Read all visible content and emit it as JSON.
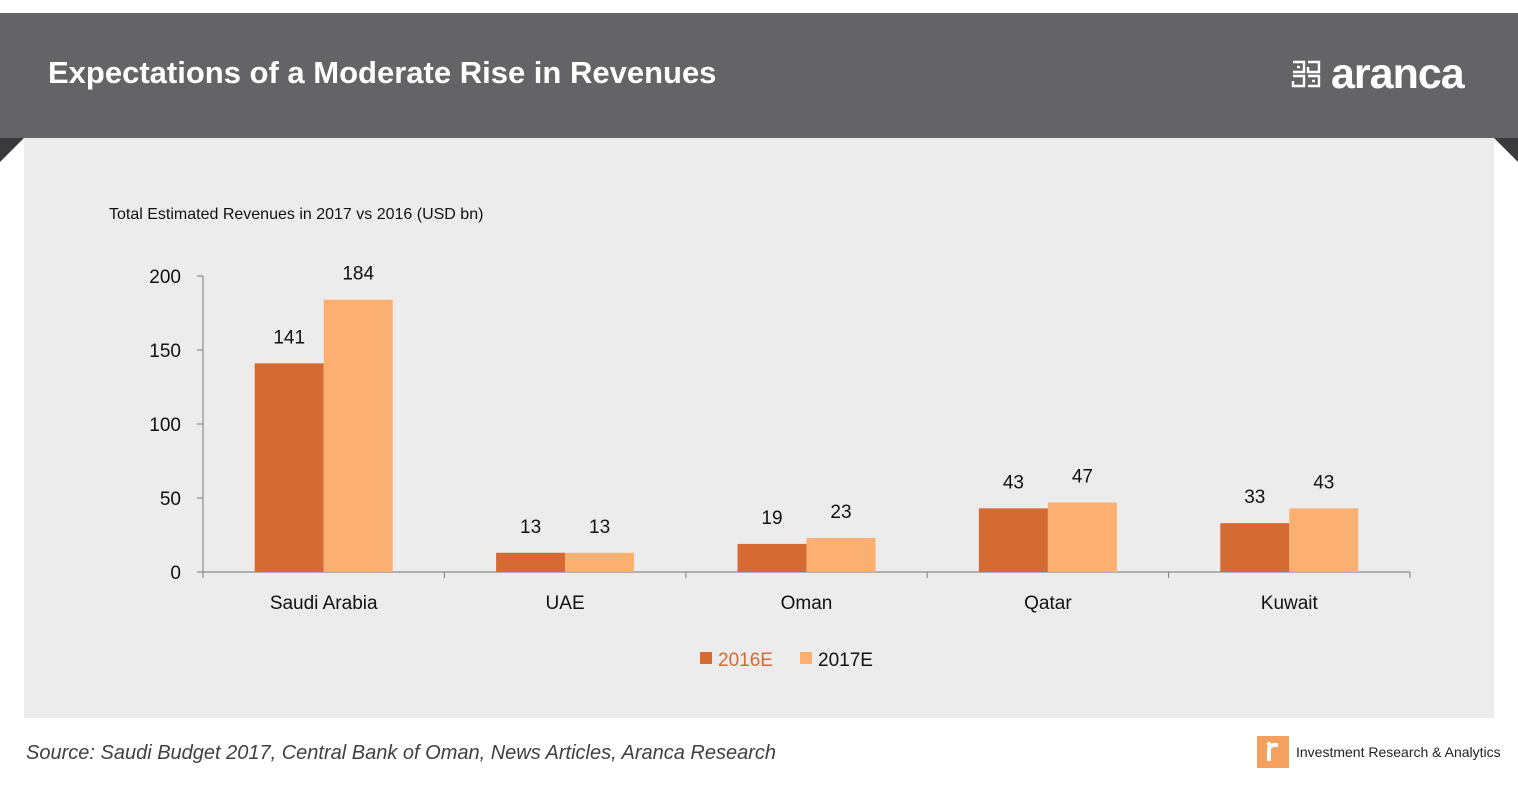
{
  "header": {
    "title": "Expectations of a Moderate Rise in Revenues",
    "brand": "aranca"
  },
  "chart_data": {
    "type": "bar",
    "title": "Total Estimated Revenues in 2017 vs 2016 (USD bn)",
    "xlabel": "",
    "ylabel": "",
    "categories": [
      "Saudi Arabia",
      "UAE",
      "Oman",
      "Qatar",
      "Kuwait"
    ],
    "series": [
      {
        "name": "2016E",
        "values": [
          141,
          13,
          19,
          43,
          33
        ],
        "color": "#d56a33"
      },
      {
        "name": "2017E",
        "values": [
          184,
          13,
          23,
          47,
          43
        ],
        "color": "#fbb071"
      }
    ],
    "ylim": [
      0,
      200
    ],
    "yticks": [
      0,
      50,
      100,
      150,
      200
    ],
    "grid": false,
    "data_labels": true,
    "legend_position": "bottom-center"
  },
  "footer": {
    "source": "Source: Saudi Budget 2017, Central Bank of Oman, News Articles, Aranca Research",
    "tagline": "Investment Research & Analytics"
  }
}
